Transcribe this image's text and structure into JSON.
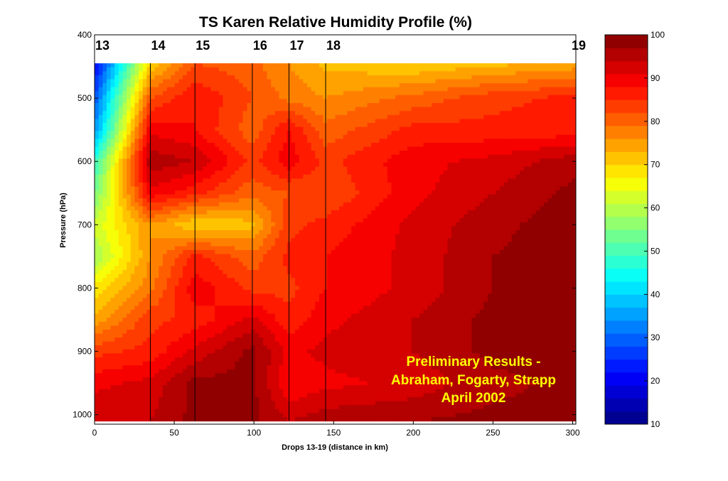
{
  "chart_data": {
    "type": "heatmap",
    "title": "TS Karen Relative Humidity Profile (%)",
    "xlabel": "Drops 13-19 (distance in km)",
    "ylabel": "Pressure (hPa)",
    "xlim": [
      0,
      302
    ],
    "ylim": [
      400,
      1015
    ],
    "y_reversed": true,
    "xticks": [
      0,
      50,
      100,
      150,
      200,
      250,
      300
    ],
    "yticks": [
      400,
      500,
      600,
      700,
      800,
      900,
      1000
    ],
    "drops": [
      {
        "label": "13",
        "x": 0
      },
      {
        "label": "14",
        "x": 35
      },
      {
        "label": "15",
        "x": 63
      },
      {
        "label": "16",
        "x": 99
      },
      {
        "label": "17",
        "x": 122
      },
      {
        "label": "18",
        "x": 145
      },
      {
        "label": "19",
        "x": 302
      }
    ],
    "colorbar": {
      "min": 10,
      "max": 100,
      "step": 3,
      "ticks": [
        10,
        20,
        30,
        40,
        50,
        60,
        70,
        80,
        90,
        100
      ],
      "colormap": "jet"
    },
    "field": {
      "x": [
        0,
        35,
        63,
        99,
        122,
        145,
        200,
        250,
        302
      ],
      "p": [
        445,
        500,
        550,
        600,
        650,
        700,
        750,
        800,
        850,
        900,
        950,
        1010
      ],
      "rh": [
        [
          20,
          70,
          82,
          80,
          76,
          72,
          70,
          72,
          74
        ],
        [
          28,
          82,
          88,
          82,
          78,
          76,
          80,
          84,
          86
        ],
        [
          34,
          90,
          88,
          80,
          88,
          80,
          86,
          86,
          86
        ],
        [
          48,
          96,
          94,
          84,
          90,
          84,
          90,
          92,
          96
        ],
        [
          54,
          90,
          86,
          80,
          82,
          82,
          90,
          94,
          98
        ],
        [
          62,
          76,
          70,
          72,
          84,
          86,
          92,
          96,
          99
        ],
        [
          58,
          76,
          86,
          80,
          86,
          88,
          92,
          97,
          99
        ],
        [
          68,
          78,
          90,
          84,
          84,
          88,
          92,
          97,
          99
        ],
        [
          74,
          84,
          86,
          92,
          86,
          90,
          94,
          98,
          99
        ],
        [
          84,
          86,
          92,
          98,
          90,
          92,
          94,
          98,
          99
        ],
        [
          90,
          92,
          98,
          98,
          88,
          90,
          92,
          96,
          98
        ],
        [
          94,
          94,
          98,
          98,
          94,
          96,
          97,
          98,
          98
        ]
      ]
    },
    "annotation": [
      "Preliminary Results -",
      "Abraham, Fogarty, Strapp",
      "April 2002"
    ]
  },
  "colors": {
    "annotation": "#ffff00",
    "contour": "#000000"
  }
}
